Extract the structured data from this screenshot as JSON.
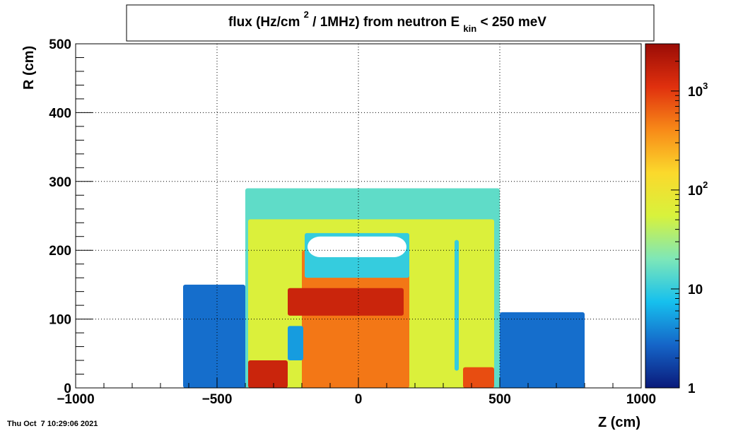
{
  "chart_data": {
    "type": "heatmap",
    "title": {
      "prefix": "flux (Hz/cm",
      "sup": "2",
      "middle": " / 1MHz) from   neutron  E",
      "sub": "kin",
      "suffix": " < 250 meV"
    },
    "xlabel": "Z (cm)",
    "ylabel": "R (cm)",
    "xlim": [
      -1000,
      1000
    ],
    "ylim": [
      0,
      500
    ],
    "xticks": [
      -1000,
      -500,
      0,
      500,
      1000
    ],
    "xtick_labels": [
      "−1000",
      "−500",
      "0",
      "500",
      "1000"
    ],
    "yticks": [
      0,
      100,
      200,
      300,
      400,
      500
    ],
    "ytick_labels": [
      "0",
      "100",
      "200",
      "300",
      "400",
      "500"
    ],
    "grid": true,
    "colorbar": {
      "scale": "log",
      "range": [
        1,
        3000
      ],
      "ticks": [
        {
          "value": 1,
          "base": "1",
          "exp": ""
        },
        {
          "value": 10,
          "base": "10",
          "exp": ""
        },
        {
          "value": 100,
          "base": "10",
          "exp": "2"
        },
        {
          "value": 1000,
          "base": "10",
          "exp": "3"
        }
      ],
      "colors": [
        "#0a1a7a",
        "#1565c8",
        "#16c0ee",
        "#7ee7b8",
        "#d8f23c",
        "#fbd92c",
        "#f88a18",
        "#e0300e",
        "#9a0c06"
      ]
    },
    "regions": [
      {
        "label": "body",
        "z": [
          -400,
          500
        ],
        "r": [
          0,
          290
        ],
        "value": 15
      },
      {
        "label": "inner-envelope",
        "z": [
          -390,
          480
        ],
        "r": [
          0,
          245
        ],
        "value": 60
      },
      {
        "label": "central-core",
        "z": [
          -200,
          180
        ],
        "r": [
          0,
          200
        ],
        "value": 500
      },
      {
        "label": "inner-band",
        "z": [
          -250,
          160
        ],
        "r": [
          105,
          145
        ],
        "value": 1500
      },
      {
        "label": "upper-shield-box",
        "z": [
          -190,
          180
        ],
        "r": [
          160,
          225
        ],
        "value": 10
      },
      {
        "label": "gap",
        "z": [
          -180,
          170
        ],
        "r": [
          190,
          220
        ],
        "value": 0
      },
      {
        "label": "lower-left-block",
        "z": [
          -390,
          -250
        ],
        "r": [
          0,
          40
        ],
        "value": 1500
      },
      {
        "label": "left-window",
        "z": [
          -250,
          -195
        ],
        "r": [
          40,
          90
        ],
        "value": 5
      },
      {
        "label": "vertical-strip",
        "z": [
          340,
          355
        ],
        "r": [
          25,
          215
        ],
        "value": 10
      },
      {
        "label": "right-lower-block",
        "z": [
          370,
          480
        ],
        "r": [
          0,
          30
        ],
        "value": 800
      },
      {
        "label": "left-outer-spray",
        "z": [
          -620,
          -400
        ],
        "r": [
          0,
          150
        ],
        "value": 3
      },
      {
        "label": "right-outer-spray",
        "z": [
          500,
          800
        ],
        "r": [
          0,
          110
        ],
        "value": 3
      }
    ]
  },
  "footer": {
    "timestamp": "Thu Oct  7 10:29:06 2021"
  }
}
